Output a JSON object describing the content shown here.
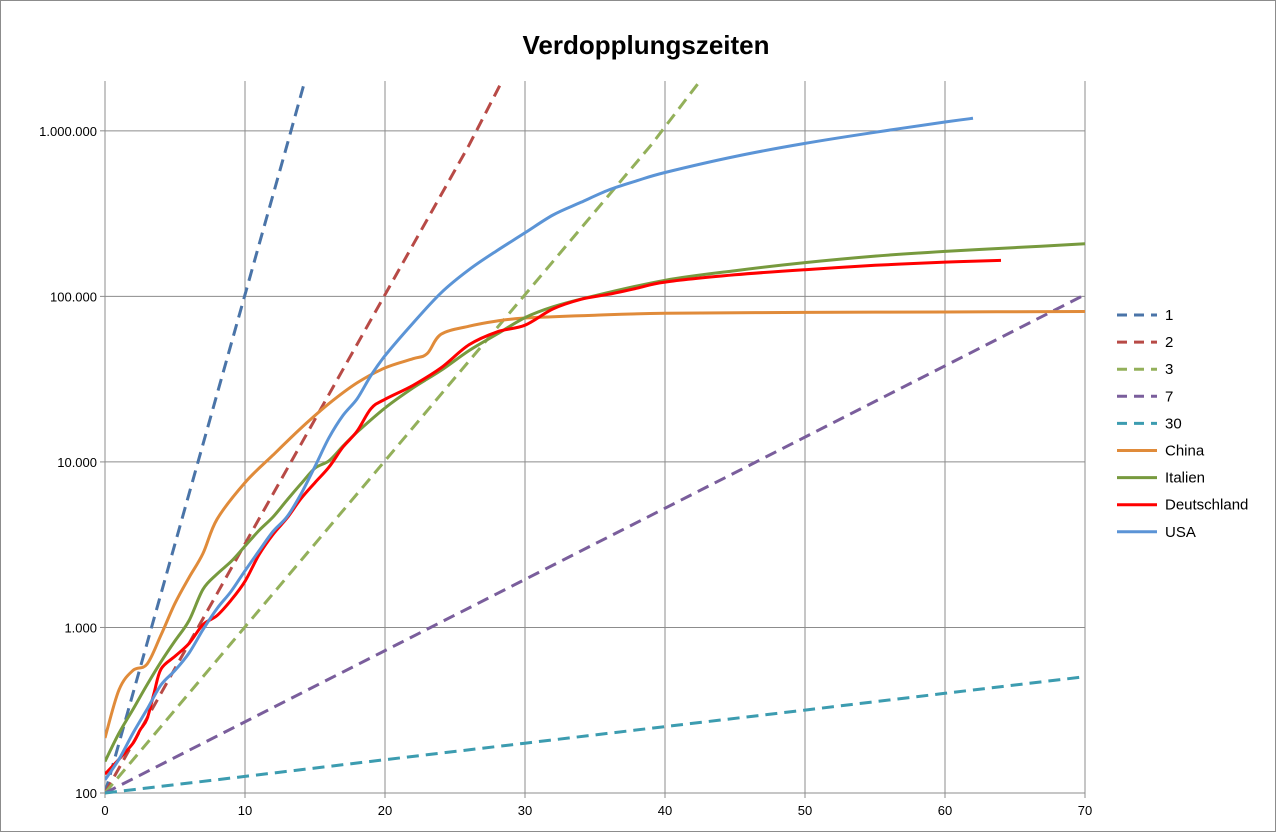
{
  "chart_data": {
    "type": "line",
    "title": "Verdopplungszeiten",
    "xlabel": "",
    "ylabel": "",
    "xlim": [
      0,
      70
    ],
    "ylim": [
      100,
      2000000
    ],
    "yscale": "log",
    "grid": true,
    "legend_position": "right",
    "x_ticks": [
      0,
      10,
      20,
      30,
      40,
      50,
      60,
      70
    ],
    "x_tick_labels": [
      "0",
      "10",
      "20",
      "30",
      "40",
      "50",
      "60",
      "70"
    ],
    "y_ticks": [
      100,
      1000,
      10000,
      100000,
      1000000
    ],
    "y_tick_labels": [
      "100",
      "1.000",
      "10.000",
      "100.000",
      "1.000.000"
    ],
    "series": [
      {
        "name": "1",
        "color": "#4a74a8",
        "dashed": true,
        "x": [
          0,
          1,
          2,
          3,
          4,
          5,
          6,
          7,
          8,
          9,
          10,
          11,
          12,
          13,
          14.2
        ],
        "y": [
          100,
          200,
          400,
          800,
          1600,
          3200,
          6400,
          12800,
          25600,
          51200,
          102400,
          204800,
          409600,
          819200,
          1900000
        ]
      },
      {
        "name": "2",
        "color": "#b84a46",
        "dashed": true,
        "x": [
          0,
          2,
          4,
          6,
          8,
          10,
          12,
          14,
          16,
          18,
          20,
          22,
          24,
          26,
          28.3
        ],
        "y": [
          100,
          200,
          400,
          800,
          1600,
          3200,
          6400,
          12800,
          25600,
          51200,
          102400,
          204800,
          409600,
          819200,
          1950000
        ]
      },
      {
        "name": "3",
        "color": "#93b05a",
        "dashed": true,
        "x": [
          0,
          3,
          6,
          9,
          12,
          15,
          18,
          21,
          24,
          27,
          30,
          33,
          36,
          39,
          42.5
        ],
        "y": [
          100,
          200,
          400,
          800,
          1600,
          3200,
          6400,
          12800,
          25600,
          51200,
          102400,
          204800,
          409600,
          819200,
          2000000
        ]
      },
      {
        "name": "7",
        "color": "#7a5e9c",
        "dashed": true,
        "x": [
          0,
          7,
          14,
          21,
          28,
          35,
          42,
          49,
          56,
          63,
          70
        ],
        "y": [
          100,
          200,
          400,
          800,
          1600,
          3200,
          6400,
          12800,
          25600,
          51200,
          102400
        ]
      },
      {
        "name": "30",
        "color": "#3c9cb0",
        "dashed": true,
        "x": [
          0,
          10,
          20,
          30,
          40,
          50,
          60,
          70
        ],
        "y": [
          100,
          126,
          159,
          200,
          252,
          317,
          400,
          504
        ]
      },
      {
        "name": "China",
        "color": "#e08b3a",
        "dashed": false,
        "x": [
          0,
          1,
          2,
          3,
          4,
          5,
          6,
          7,
          8,
          10,
          12,
          14,
          16,
          18,
          20,
          22,
          23,
          24,
          26,
          28,
          30,
          35,
          40,
          50,
          60,
          70
        ],
        "y": [
          215,
          420,
          550,
          600,
          900,
          1400,
          2000,
          2800,
          4500,
          7500,
          11000,
          16000,
          22500,
          30000,
          37000,
          42000,
          45000,
          59000,
          66000,
          71000,
          74000,
          77000,
          79000,
          80000,
          80500,
          81000
        ]
      },
      {
        "name": "Italien",
        "color": "#779a3e",
        "dashed": false,
        "x": [
          0,
          1,
          2,
          3,
          4,
          5,
          6,
          7,
          8,
          9,
          10,
          11,
          12,
          13,
          14,
          15,
          16,
          17,
          18,
          20,
          22,
          24,
          26,
          28,
          30,
          32,
          35,
          40,
          45,
          50,
          55,
          60,
          65,
          70
        ],
        "y": [
          155,
          230,
          320,
          450,
          620,
          830,
          1100,
          1700,
          2100,
          2500,
          3100,
          3850,
          4650,
          5880,
          7380,
          9170,
          10150,
          12460,
          15110,
          21160,
          27980,
          35710,
          47020,
          59140,
          74390,
          86500,
          101000,
          125000,
          143000,
          160000,
          175000,
          187000,
          197000,
          208000
        ]
      },
      {
        "name": "Deutschland",
        "color": "#ff0000",
        "dashed": false,
        "x": [
          0,
          1,
          2,
          2.5,
          3,
          3.5,
          4,
          5,
          6,
          7,
          8,
          9,
          10,
          11,
          12,
          13,
          14,
          15,
          16,
          17,
          18,
          19,
          20,
          22,
          24,
          26,
          28,
          30,
          32,
          34,
          36,
          38,
          40,
          45,
          50,
          55,
          60,
          64
        ],
        "y": [
          130,
          160,
          200,
          240,
          280,
          400,
          560,
          670,
          800,
          1040,
          1180,
          1460,
          1900,
          2750,
          3650,
          4580,
          6000,
          7500,
          9300,
          12300,
          15300,
          21000,
          23900,
          29000,
          37000,
          51000,
          61000,
          67000,
          84000,
          96000,
          103000,
          112000,
          122000,
          135000,
          145000,
          154000,
          161000,
          165000
        ]
      },
      {
        "name": "USA",
        "color": "#5b94d6",
        "dashed": false,
        "x": [
          0,
          1,
          2,
          3,
          4,
          5,
          6,
          7,
          8,
          9,
          10,
          11,
          12,
          13,
          14,
          15,
          16,
          17,
          18,
          19,
          20,
          22,
          24,
          26,
          28,
          30,
          32,
          34,
          36,
          38,
          40,
          45,
          50,
          55,
          60,
          62
        ],
        "y": [
          120,
          160,
          230,
          320,
          450,
          550,
          700,
          970,
          1300,
          1650,
          2200,
          2900,
          3800,
          4660,
          6400,
          9400,
          14000,
          19100,
          24000,
          33300,
          43800,
          69000,
          105000,
          145000,
          189000,
          242000,
          310000,
          370000,
          440000,
          500000,
          560000,
          700000,
          840000,
          980000,
          1130000,
          1190000
        ]
      }
    ]
  }
}
